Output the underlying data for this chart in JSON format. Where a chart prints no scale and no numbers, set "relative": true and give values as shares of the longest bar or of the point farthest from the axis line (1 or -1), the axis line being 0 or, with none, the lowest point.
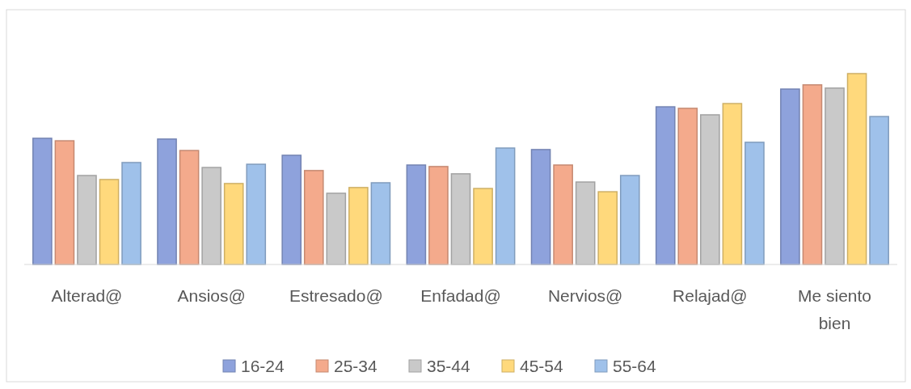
{
  "chart_data": {
    "type": "bar",
    "relative": true,
    "legend": "bottom",
    "categories": [
      "Alterad@",
      "Ansios@",
      "Estresado@",
      "Enfadad@",
      "Nervios@",
      "Relajad@",
      "Me siento bien"
    ],
    "series": [
      {
        "name": "16-24",
        "color": "#8ea2dc",
        "values": [
          0.661,
          0.657,
          0.572,
          0.521,
          0.602,
          0.826,
          0.919
        ]
      },
      {
        "name": "25-34",
        "color": "#f4aa8c",
        "values": [
          0.648,
          0.597,
          0.492,
          0.513,
          0.521,
          0.818,
          0.941
        ]
      },
      {
        "name": "35-44",
        "color": "#c9c9c9",
        "values": [
          0.466,
          0.508,
          0.373,
          0.475,
          0.432,
          0.784,
          0.924
        ]
      },
      {
        "name": "45-54",
        "color": "#ffd97c",
        "values": [
          0.445,
          0.424,
          0.403,
          0.398,
          0.381,
          0.843,
          1
        ]
      },
      {
        "name": "55-64",
        "color": "#9fc1ea",
        "values": [
          0.534,
          0.525,
          0.428,
          0.61,
          0.466,
          0.64,
          0.775
        ]
      }
    ]
  }
}
